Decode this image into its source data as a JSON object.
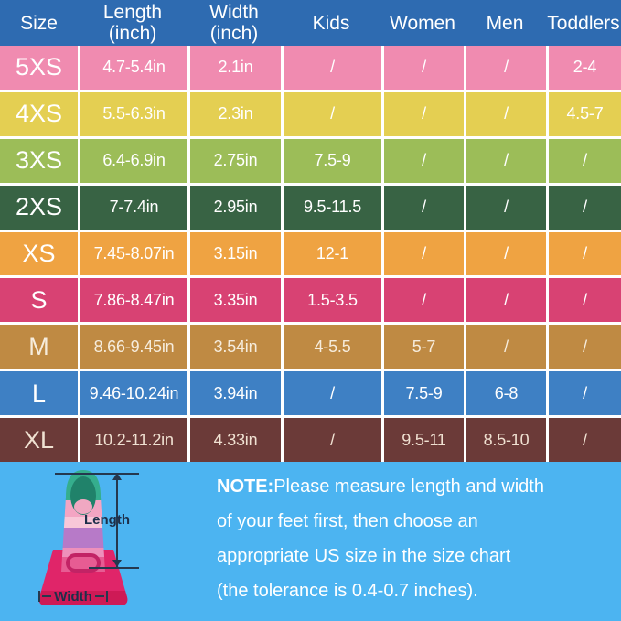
{
  "chart_data": {
    "type": "table",
    "columns": [
      "Size",
      "Length\n(inch)",
      "Width\n(inch)",
      "Kids",
      "Women",
      "Men",
      "Toddlers"
    ],
    "rows": [
      [
        "5XS",
        "4.7-5.4in",
        "2.1in",
        "/",
        "/",
        "/",
        "2-4"
      ],
      [
        "4XS",
        "5.5-6.3in",
        "2.3in",
        "/",
        "/",
        "/",
        "4.5-7"
      ],
      [
        "3XS",
        "6.4-6.9in",
        "2.75in",
        "7.5-9",
        "/",
        "/",
        "/"
      ],
      [
        "2XS",
        "7-7.4in",
        "2.95in",
        "9.5-11.5",
        "/",
        "/",
        "/"
      ],
      [
        "XS",
        "7.45-8.07in",
        "3.15in",
        "12-1",
        "/",
        "/",
        "/"
      ],
      [
        "S",
        "7.86-8.47in",
        "3.35in",
        "1.5-3.5",
        "/",
        "/",
        "/"
      ],
      [
        "M",
        "8.66-9.45in",
        "3.54in",
        "4-5.5",
        "5-7",
        "/",
        "/"
      ],
      [
        "L",
        "9.46-10.24in",
        "3.94in",
        "/",
        "7.5-9",
        "6-8",
        "/"
      ],
      [
        "XL",
        "10.2-11.2in",
        "4.33in",
        "/",
        "9.5-11",
        "8.5-10",
        "/"
      ]
    ]
  },
  "style": {
    "header_bg": "#2E6BB1",
    "footer_bg": "#4CB4F1",
    "separator": "#FFFFFF",
    "header_text": "#FFFFFF",
    "annotation_color": "#25384E",
    "row_colors": [
      "#F08BB0",
      "#E4CF52",
      "#9CBD58",
      "#386344",
      "#EFA342",
      "#D84273",
      "#BF8A43",
      "#3E80C4",
      "#6B3A38"
    ],
    "row_text_colors": [
      "#FFFFFF",
      "#FFFFFF",
      "#FFFFFF",
      "#FFFFFF",
      "#FFFFFF",
      "#FFFFFF",
      "#F6ECDC",
      "#FFFFFF",
      "#F0E1D2"
    ]
  },
  "note": {
    "prefix": "NOTE:",
    "line1": "Please measure length and width",
    "line2": "of your feet first, then choose an",
    "line3": "appropriate US size in the size chart",
    "line4": "(the tolerance is 0.4-0.7 inches)."
  },
  "diagram": {
    "length_label": "Length",
    "width_label": "Width"
  }
}
